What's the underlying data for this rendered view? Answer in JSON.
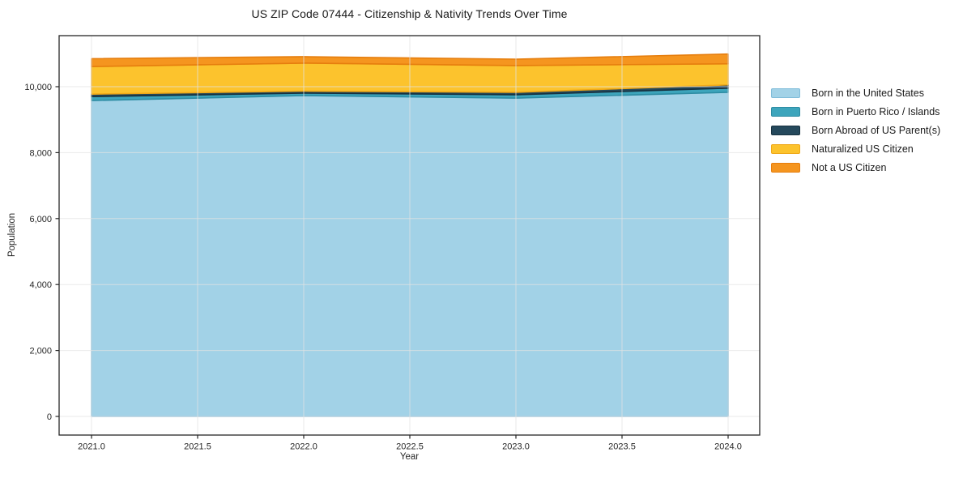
{
  "chart": {
    "title": "US ZIP Code 07444 - Citizenship & Nativity Trends Over Time",
    "xlabel": "Year",
    "ylabel": "Population"
  },
  "axis": {
    "x_ticks": [
      {
        "value": 2021.0,
        "label": "2021.0"
      },
      {
        "value": 2021.5,
        "label": "2021.5"
      },
      {
        "value": 2022.0,
        "label": "2022.0"
      },
      {
        "value": 2022.5,
        "label": "2022.5"
      },
      {
        "value": 2023.0,
        "label": "2023.0"
      },
      {
        "value": 2023.5,
        "label": "2023.5"
      },
      {
        "value": 2024.0,
        "label": "2024.0"
      }
    ],
    "y_ticks": [
      {
        "value": 0,
        "label": "0"
      },
      {
        "value": 2000,
        "label": "2,000"
      },
      {
        "value": 4000,
        "label": "4,000"
      },
      {
        "value": 6000,
        "label": "6,000"
      },
      {
        "value": 8000,
        "label": "8,000"
      },
      {
        "value": 10000,
        "label": "10,000"
      }
    ]
  },
  "legend": {
    "items": [
      {
        "label": "Born in the United States",
        "color": "#a2d2e7",
        "edge": "#7fbcd9"
      },
      {
        "label": "Born in Puerto Rico / Islands",
        "color": "#3da5bc",
        "edge": "#2d8ca3"
      },
      {
        "label": "Born Abroad of US Parent(s)",
        "color": "#25495c",
        "edge": "#17313f"
      },
      {
        "label": "Naturalized US Citizen",
        "color": "#fcc32d",
        "edge": "#efa818"
      },
      {
        "label": "Not a US Citizen",
        "color": "#f5951f",
        "edge": "#e67e0e"
      }
    ]
  },
  "chart_data": {
    "type": "area",
    "stacked": true,
    "title": "US ZIP Code 07444 - Citizenship & Nativity Trends Over Time",
    "xlabel": "Year",
    "ylabel": "Population",
    "x": [
      2021,
      2022,
      2023,
      2024
    ],
    "series": [
      {
        "name": "Born in the United States",
        "color": "#a2d2e7",
        "edge": "#7fbcd9",
        "values": [
          9580,
          9730,
          9655,
          9830
        ]
      },
      {
        "name": "Born in Puerto Rico / Islands",
        "color": "#3da5bc",
        "edge": "#2d8ca3",
        "values": [
          120,
          75,
          100,
          125
        ]
      },
      {
        "name": "Born Abroad of US Parent(s)",
        "color": "#25495c",
        "edge": "#17313f",
        "values": [
          75,
          60,
          75,
          100
        ]
      },
      {
        "name": "Naturalized US Citizen",
        "color": "#fcc32d",
        "edge": "#efa818",
        "values": [
          835,
          850,
          810,
          640
        ]
      },
      {
        "name": "Not a US Citizen",
        "color": "#f5951f",
        "edge": "#e67e0e",
        "values": [
          240,
          195,
          195,
          295
        ]
      }
    ],
    "totals": [
      10850,
      10910,
      10835,
      10990
    ],
    "xlim": [
      2020.85,
      2024.15
    ],
    "ylim": [
      -565,
      11597
    ],
    "grid": true,
    "legend_position": "right-outside"
  }
}
